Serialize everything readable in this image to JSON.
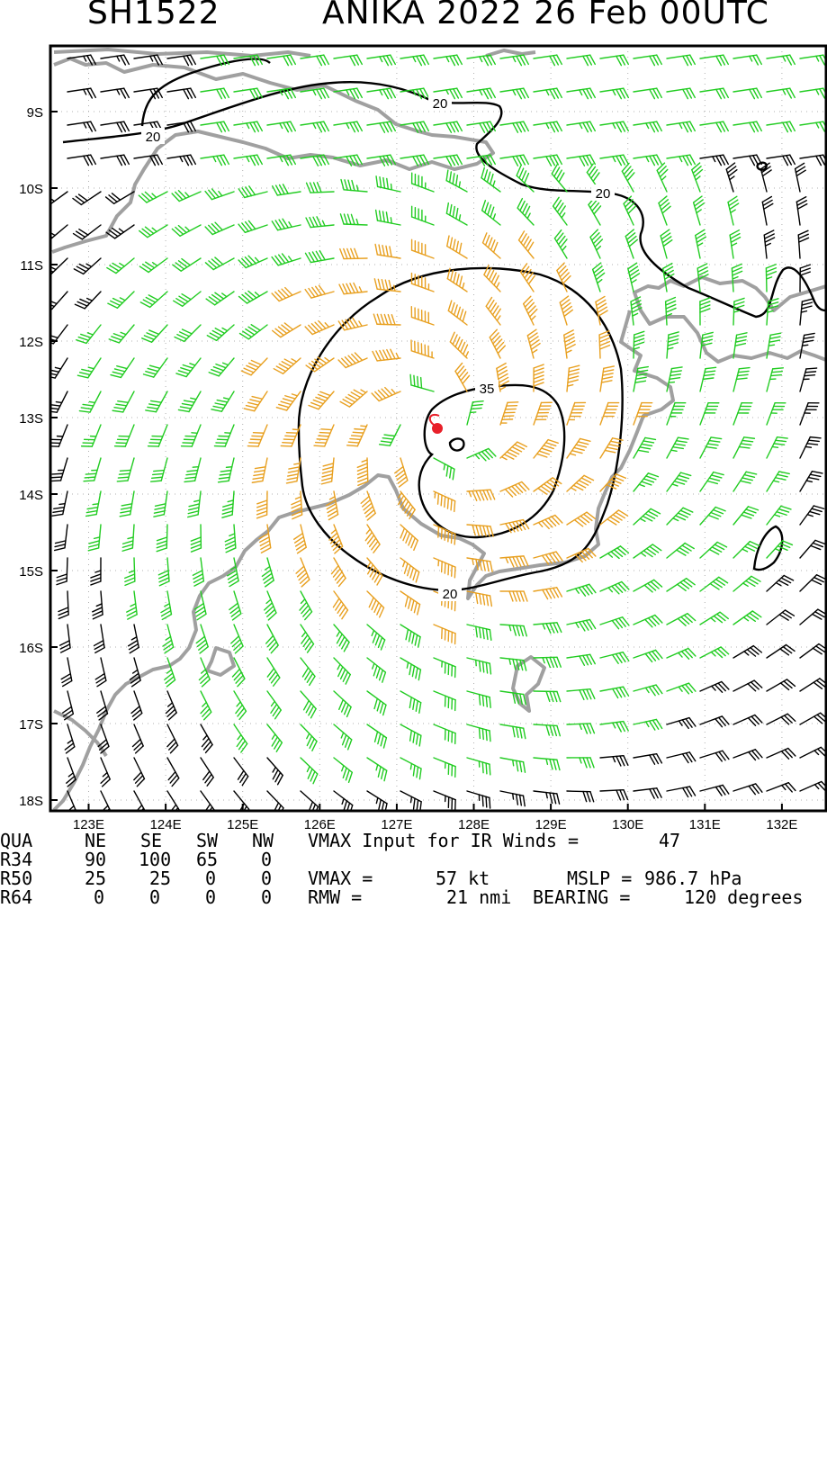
{
  "header": {
    "storm_id": "SH1522",
    "title": "ANIKA 2022 26 Feb 00UTC"
  },
  "map": {
    "lat_labels": [
      "9S",
      "10S",
      "11S",
      "12S",
      "13S",
      "14S",
      "15S",
      "16S",
      "17S",
      "18S"
    ],
    "lon_labels": [
      "123E",
      "124E",
      "125E",
      "126E",
      "127E",
      "128E",
      "129E",
      "130E",
      "131E",
      "132E"
    ],
    "contour_labels": [
      "20",
      "20",
      "20",
      "35",
      "20"
    ],
    "storm_center": {
      "lat": -13.15,
      "lon": 127.6,
      "color": "#e8202a"
    },
    "colors": {
      "barb_low": "#000000",
      "barb_gale": "#22cc22",
      "barb_storm": "#e8a020",
      "coastline": "#a0a0a0",
      "contour": "#000000",
      "grid": "#b0b0b0"
    }
  },
  "table": {
    "headers": [
      "QUA",
      "NE",
      "SE",
      "SW",
      "NW"
    ],
    "rows": [
      {
        "label": "R34",
        "ne": "90",
        "se": "100",
        "sw": "65",
        "nw": "0"
      },
      {
        "label": "R50",
        "ne": "25",
        "se": "25",
        "sw": "0",
        "nw": "0"
      },
      {
        "label": "R64",
        "ne": "0",
        "se": "0",
        "sw": "0",
        "nw": "0"
      }
    ],
    "vmax_input_label": "VMAX Input for IR Winds =",
    "vmax_input_value": "47",
    "vmax_label": "VMAX =",
    "vmax_value": "57 kt",
    "mslp_label": "MSLP =",
    "mslp_value": "986.7 hPa",
    "rmw_label": "RMW =",
    "rmw_value": "21 nmi",
    "bearing_label": "BEARING =",
    "bearing_value": "120 degrees"
  }
}
